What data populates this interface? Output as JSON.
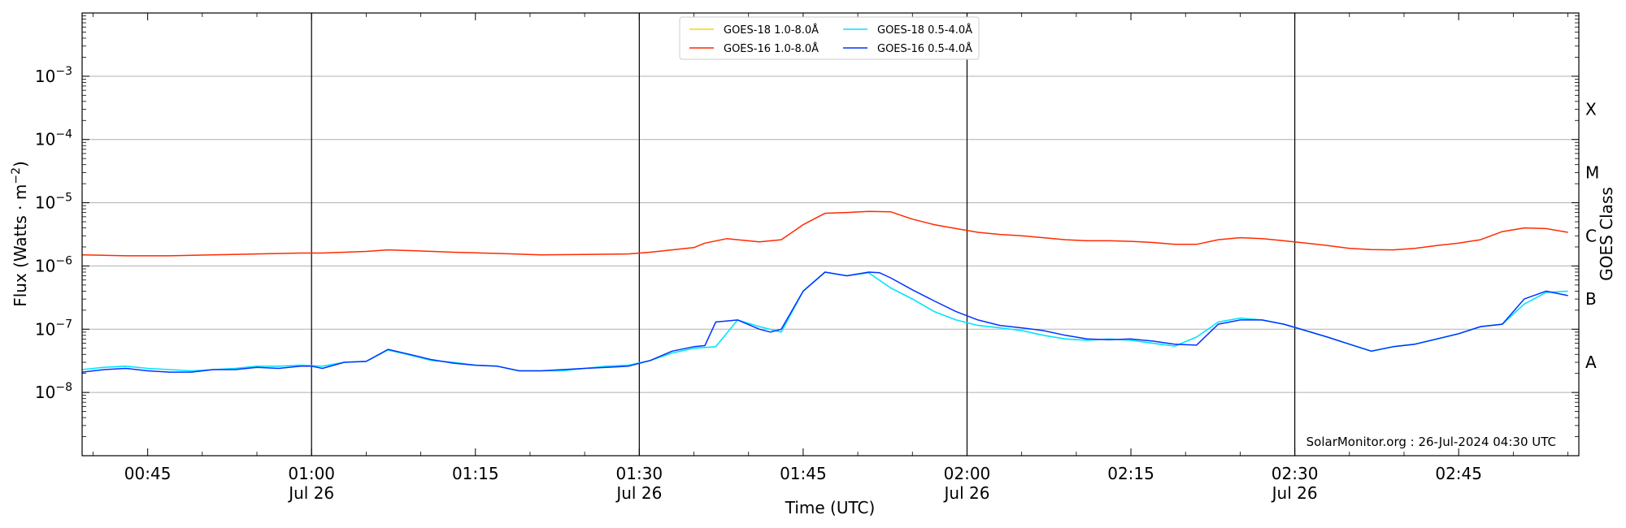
{
  "chart_data": {
    "type": "line",
    "xlabel": "Time (UTC)",
    "ylabel": "Flux (Watts · m⁻²)",
    "ylabel_right": "GOES Class",
    "credit": "SolarMonitor.org : 26-Jul-2024 04:30 UTC",
    "y_scale": "log",
    "ylim": [
      1e-09,
      0.01
    ],
    "xlim": [
      "2024-07-26T00:39:00",
      "2024-07-26T02:56:00"
    ],
    "grid": "horizontal at each decade",
    "legend_position": "top-center",
    "x_ticks": [
      {
        "time": "00:45",
        "line1": "00:45",
        "line2": ""
      },
      {
        "time": "01:00",
        "line1": "01:00",
        "line2": "Jul 26"
      },
      {
        "time": "01:15",
        "line1": "01:15",
        "line2": ""
      },
      {
        "time": "01:30",
        "line1": "01:30",
        "line2": "Jul 26"
      },
      {
        "time": "01:45",
        "line1": "01:45",
        "line2": ""
      },
      {
        "time": "02:00",
        "line1": "02:00",
        "line2": "Jul 26"
      },
      {
        "time": "02:15",
        "line1": "02:15",
        "line2": ""
      },
      {
        "time": "02:30",
        "line1": "02:30",
        "line2": "Jul 26"
      },
      {
        "time": "02:45",
        "line1": "02:45",
        "line2": ""
      }
    ],
    "vertical_lines": [
      "01:00",
      "01:30",
      "02:00",
      "02:30"
    ],
    "y_ticks": [
      {
        "exp": -8,
        "base": "10",
        "sup": "−8"
      },
      {
        "exp": -7,
        "base": "10",
        "sup": "−7"
      },
      {
        "exp": -6,
        "base": "10",
        "sup": "−6"
      },
      {
        "exp": -5,
        "base": "10",
        "sup": "−5"
      },
      {
        "exp": -4,
        "base": "10",
        "sup": "−4"
      },
      {
        "exp": -3,
        "base": "10",
        "sup": "−3"
      }
    ],
    "goes_classes": [
      {
        "label": "A",
        "flux": 3e-08
      },
      {
        "label": "B",
        "flux": 3e-07
      },
      {
        "label": "C",
        "flux": 3e-06
      },
      {
        "label": "M",
        "flux": 3e-05
      },
      {
        "label": "X",
        "flux": 0.0003
      }
    ],
    "series": [
      {
        "name": "GOES-18 1.0-8.0Å",
        "color": "#ffd700",
        "x": [],
        "values": []
      },
      {
        "name": "GOES-18 0.5-4.0Å",
        "color": "#00e5ff",
        "x": [
          "00:39",
          "00:41",
          "00:43",
          "00:45",
          "00:47",
          "00:49",
          "00:51",
          "00:53",
          "00:55",
          "00:57",
          "00:59",
          "01:01",
          "01:03",
          "01:05",
          "01:07",
          "01:09",
          "01:11",
          "01:13",
          "01:15",
          "01:17",
          "01:19",
          "01:21",
          "01:23",
          "01:25",
          "01:27",
          "01:29",
          "01:31",
          "01:33",
          "01:35",
          "01:37",
          "01:39",
          "01:41",
          "01:43",
          "01:45",
          "01:47",
          "01:49",
          "01:51",
          "01:53",
          "01:55",
          "01:57",
          "01:59",
          "02:01",
          "02:03",
          "02:05",
          "02:07",
          "02:09",
          "02:11",
          "02:13",
          "02:15",
          "02:17",
          "02:19",
          "02:21",
          "02:23",
          "02:25",
          "02:27",
          "02:29",
          "02:31",
          "02:33",
          "02:35",
          "02:37",
          "02:39",
          "02:41",
          "02:43",
          "02:45",
          "02:47",
          "02:49",
          "02:51",
          "02:53",
          "02:55"
        ],
        "values": [
          2.3e-08,
          2.5e-08,
          2.6e-08,
          2.4e-08,
          2.3e-08,
          2.2e-08,
          2.3e-08,
          2.4e-08,
          2.6e-08,
          2.6e-08,
          2.7e-08,
          2.6e-08,
          3e-08,
          3.1e-08,
          4.7e-08,
          3.9e-08,
          3.2e-08,
          3e-08,
          2.7e-08,
          2.6e-08,
          2.2e-08,
          2.2e-08,
          2.2e-08,
          2.4e-08,
          2.6e-08,
          2.7e-08,
          3.2e-08,
          4.2e-08,
          5e-08,
          5.3e-08,
          1.4e-07,
          1.1e-07,
          9e-08,
          4e-07,
          8e-07,
          7e-07,
          7.8e-07,
          4.5e-07,
          3e-07,
          1.9e-07,
          1.4e-07,
          1.15e-07,
          1.05e-07,
          9.5e-08,
          8e-08,
          7e-08,
          6.7e-08,
          7e-08,
          6.7e-08,
          6e-08,
          5.4e-08,
          7.5e-08,
          1.3e-07,
          1.5e-07,
          1.4e-07,
          1.2e-07,
          9.5e-08,
          7.5e-08,
          5.8e-08,
          4.5e-08,
          5.3e-08,
          5.8e-08,
          7e-08,
          8.5e-08,
          1.1e-07,
          1.2e-07,
          2.5e-07,
          3.8e-07,
          4e-07
        ]
      },
      {
        "name": "GOES-16 1.0-8.0Å",
        "color": "#ff2a00",
        "x": [
          "00:39",
          "00:43",
          "00:47",
          "00:51",
          "00:55",
          "00:59",
          "01:01",
          "01:03",
          "01:05",
          "01:07",
          "01:09",
          "01:13",
          "01:17",
          "01:21",
          "01:25",
          "01:29",
          "01:31",
          "01:33",
          "01:35",
          "01:36",
          "01:38",
          "01:39",
          "01:41",
          "01:43",
          "01:45",
          "01:47",
          "01:49",
          "01:51",
          "01:53",
          "01:55",
          "01:57",
          "01:59",
          "02:01",
          "02:03",
          "02:05",
          "02:07",
          "02:09",
          "02:11",
          "02:13",
          "02:15",
          "02:17",
          "02:19",
          "02:21",
          "02:23",
          "02:25",
          "02:27",
          "02:29",
          "02:31",
          "02:33",
          "02:35",
          "02:37",
          "02:39",
          "02:41",
          "02:43",
          "02:45",
          "02:47",
          "02:49",
          "02:51",
          "02:53",
          "02:55"
        ],
        "values": [
          1.5e-06,
          1.45e-06,
          1.45e-06,
          1.5e-06,
          1.55e-06,
          1.6e-06,
          1.6e-06,
          1.65e-06,
          1.7e-06,
          1.8e-06,
          1.75e-06,
          1.65e-06,
          1.58e-06,
          1.5e-06,
          1.52e-06,
          1.55e-06,
          1.65e-06,
          1.8e-06,
          1.95e-06,
          2.3e-06,
          2.7e-06,
          2.6e-06,
          2.4e-06,
          2.6e-06,
          4.5e-06,
          6.8e-06,
          7e-06,
          7.3e-06,
          7.2e-06,
          5.5e-06,
          4.5e-06,
          3.9e-06,
          3.4e-06,
          3.15e-06,
          3e-06,
          2.8e-06,
          2.6e-06,
          2.5e-06,
          2.5e-06,
          2.45e-06,
          2.35e-06,
          2.2e-06,
          2.2e-06,
          2.6e-06,
          2.8e-06,
          2.7e-06,
          2.5e-06,
          2.3e-06,
          2.1e-06,
          1.9e-06,
          1.82e-06,
          1.8e-06,
          1.9e-06,
          2.1e-06,
          2.3e-06,
          2.6e-06,
          3.5e-06,
          4e-06,
          3.9e-06,
          3.4e-06
        ]
      },
      {
        "name": "GOES-16 0.5-4.0Å",
        "color": "#0033ff",
        "x": [
          "00:39",
          "00:41",
          "00:43",
          "00:45",
          "00:47",
          "00:49",
          "00:51",
          "00:53",
          "00:55",
          "00:57",
          "00:59",
          "01:00",
          "01:01",
          "01:03",
          "01:05",
          "01:07",
          "01:09",
          "01:11",
          "01:13",
          "01:15",
          "01:17",
          "01:19",
          "01:21",
          "01:23",
          "01:25",
          "01:27",
          "01:29",
          "01:31",
          "01:33",
          "01:35",
          "01:36",
          "01:37",
          "01:39",
          "01:41",
          "01:42",
          "01:43",
          "01:45",
          "01:47",
          "01:49",
          "01:51",
          "01:52",
          "01:53",
          "01:55",
          "01:57",
          "01:59",
          "02:01",
          "02:03",
          "02:05",
          "02:07",
          "02:09",
          "02:11",
          "02:13",
          "02:15",
          "02:17",
          "02:19",
          "02:21",
          "02:23",
          "02:25",
          "02:27",
          "02:29",
          "02:31",
          "02:33",
          "02:35",
          "02:37",
          "02:39",
          "02:41",
          "02:43",
          "02:45",
          "02:47",
          "02:49",
          "02:51",
          "02:53",
          "02:55"
        ],
        "values": [
          2.1e-08,
          2.3e-08,
          2.4e-08,
          2.2e-08,
          2.1e-08,
          2.1e-08,
          2.3e-08,
          2.3e-08,
          2.5e-08,
          2.4e-08,
          2.6e-08,
          2.6e-08,
          2.4e-08,
          3e-08,
          3.1e-08,
          4.8e-08,
          4e-08,
          3.3e-08,
          2.9e-08,
          2.7e-08,
          2.6e-08,
          2.2e-08,
          2.2e-08,
          2.3e-08,
          2.4e-08,
          2.5e-08,
          2.6e-08,
          3.2e-08,
          4.5e-08,
          5.3e-08,
          5.5e-08,
          1.3e-07,
          1.4e-07,
          1e-07,
          9e-08,
          1e-07,
          4e-07,
          8e-07,
          7e-07,
          8e-07,
          7.8e-07,
          6.5e-07,
          4.2e-07,
          2.8e-07,
          1.9e-07,
          1.4e-07,
          1.15e-07,
          1.05e-07,
          9.5e-08,
          8e-08,
          7e-08,
          6.8e-08,
          7e-08,
          6.5e-08,
          5.8e-08,
          5.6e-08,
          1.2e-07,
          1.4e-07,
          1.4e-07,
          1.2e-07,
          9.5e-08,
          7.5e-08,
          5.8e-08,
          4.5e-08,
          5.3e-08,
          5.8e-08,
          7e-08,
          8.5e-08,
          1.1e-07,
          1.2e-07,
          3e-07,
          4e-07,
          3.4e-07
        ]
      }
    ]
  }
}
